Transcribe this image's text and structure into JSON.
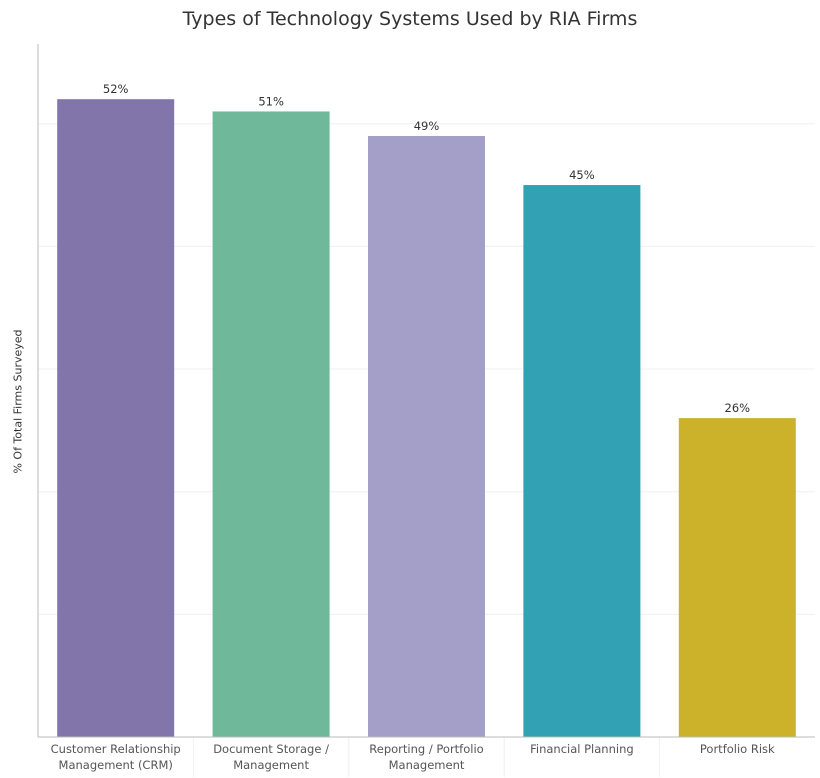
{
  "chart_data": {
    "type": "bar",
    "title": "Types of Technology Systems Used by RIA Firms",
    "xlabel": "",
    "ylabel": "% Of Total Firms Surveyed",
    "categories": [
      [
        "Customer Relationship",
        "Management (CRM)"
      ],
      [
        "Document Storage /",
        "Management"
      ],
      [
        "Reporting / Portfolio",
        "Management"
      ],
      [
        "Financial Planning"
      ],
      [
        "Portfolio Risk"
      ]
    ],
    "values": [
      52,
      51,
      49,
      45,
      26
    ],
    "data_labels": [
      "52%",
      "51%",
      "49%",
      "45%",
      "26%"
    ],
    "colors": [
      "#8175aa",
      "#6fb899",
      "#a39fc9",
      "#31a1b3",
      "#ccb22b"
    ],
    "ylim": [
      0,
      56.5
    ],
    "y_ticks_shown": false,
    "grid": true,
    "gridlines_at": [
      10,
      20,
      30,
      40,
      50
    ],
    "legend": "none"
  }
}
